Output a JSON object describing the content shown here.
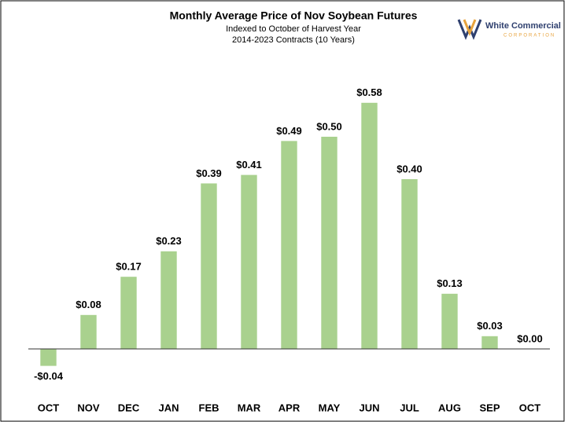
{
  "chart_data": {
    "type": "bar",
    "title": "Monthly Average Price of Nov Soybean Futures",
    "subtitle": [
      "Indexed to October of Harvest Year",
      "2014-2023 Contracts (10 Years)"
    ],
    "logo": {
      "name": "White Commercial",
      "tagline": "CORPORATION"
    },
    "categories": [
      "OCT",
      "NOV",
      "DEC",
      "JAN",
      "FEB",
      "MAR",
      "APR",
      "MAY",
      "JUN",
      "JUL",
      "AUG",
      "SEP",
      "OCT"
    ],
    "values": [
      -0.04,
      0.08,
      0.17,
      0.23,
      0.39,
      0.41,
      0.49,
      0.5,
      0.58,
      0.4,
      0.13,
      0.03,
      0.0
    ],
    "value_labels": [
      "-$0.04",
      "$0.08",
      "$0.17",
      "$0.23",
      "$0.39",
      "$0.41",
      "$0.49",
      "$0.50",
      "$0.58",
      "$0.40",
      "$0.13",
      "$0.03",
      "$0.00"
    ],
    "color": "#a9d18e",
    "ylim": [
      -0.1,
      0.7
    ]
  }
}
